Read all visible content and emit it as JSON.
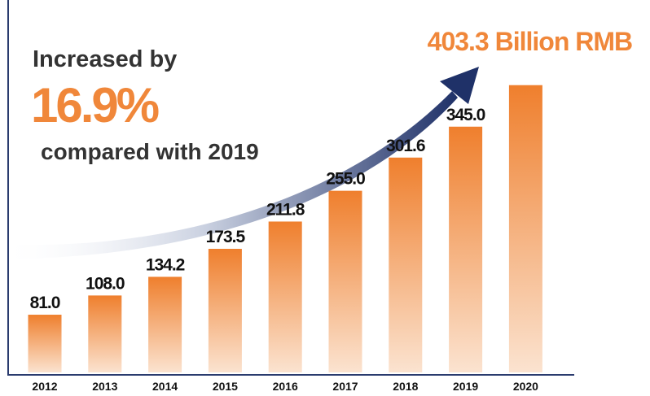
{
  "chart_data": {
    "type": "bar",
    "annotations": [
      "Increased by",
      "16.9%",
      "compared with 2019"
    ],
    "categories": [
      "2012",
      "2013",
      "2014",
      "2015",
      "2016",
      "2017",
      "2018",
      "2019",
      "2020"
    ],
    "values": [
      81.0,
      108.0,
      134.2,
      173.5,
      211.8,
      255.0,
      301.6,
      345.0,
      403.3
    ],
    "value_labels": [
      "81.0",
      "108.0",
      "134.2",
      "173.5",
      "211.8",
      "255.0",
      "301.6",
      "345.0",
      "403.3 Billion RMB"
    ],
    "color": "#f0873a"
  }
}
